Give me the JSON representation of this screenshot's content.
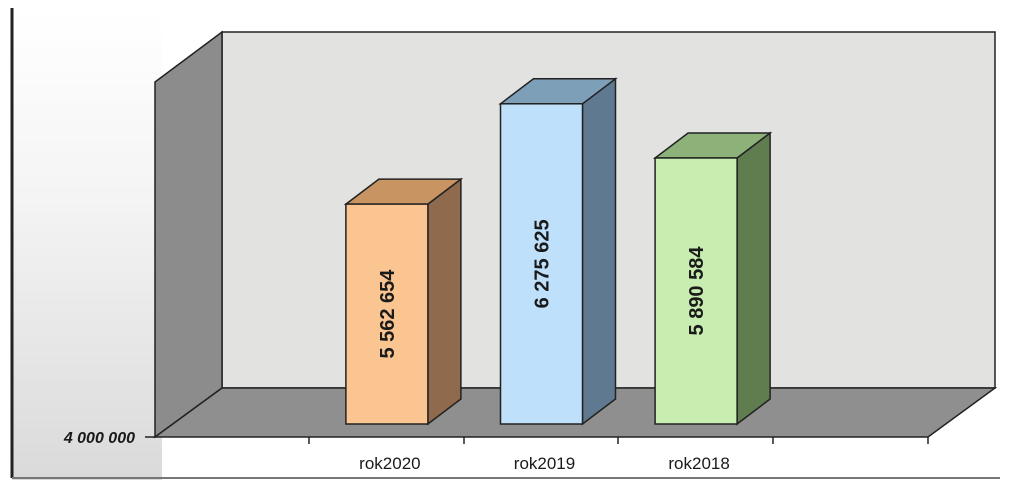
{
  "chart_data": {
    "type": "bar",
    "style": "3d",
    "categories": [
      "rok2020",
      "rok2019",
      "rok2018"
    ],
    "values": [
      5562654,
      6275625,
      5890584
    ],
    "data_labels": [
      "5 562 654",
      "6 275 625",
      "5 890 584"
    ],
    "ylim": [
      4000000,
      6800000
    ],
    "yticks": [
      4000000
    ],
    "ytick_labels": [
      "4 000 000"
    ],
    "title": "",
    "xlabel": "",
    "ylabel": "",
    "grid": false,
    "colors": {
      "bars": [
        "#fac591",
        "#bfe0fb",
        "#c7eeb0"
      ],
      "bar_tops": [
        "#c89462",
        "#7d9fb8",
        "#8cb27a"
      ],
      "bar_sides": [
        "#8f6a4c",
        "#5f7a90",
        "#5f7d4f"
      ],
      "back_wall": "#e2e2e0",
      "side_wall": "#8c8c8c",
      "floor": "#8f8f8f"
    }
  }
}
